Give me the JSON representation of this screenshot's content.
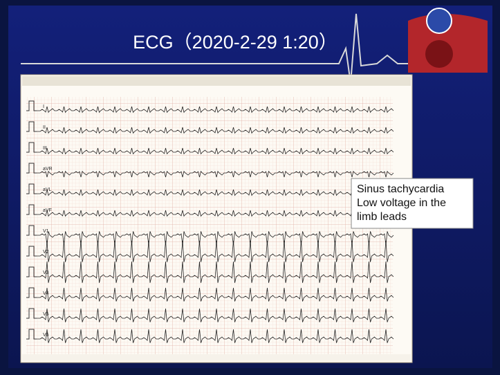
{
  "header": {
    "title": "ECG（2020-2-29 1:20）"
  },
  "ecg": {
    "leads": [
      "I",
      "II",
      "III",
      "aVR",
      "aVL",
      "aVF",
      "V1",
      "V2",
      "V3",
      "V4",
      "V5",
      "V6"
    ]
  },
  "annotation": {
    "lines": [
      "Sinus tachycardia",
      "Low voltage in the",
      "limb leads"
    ]
  }
}
